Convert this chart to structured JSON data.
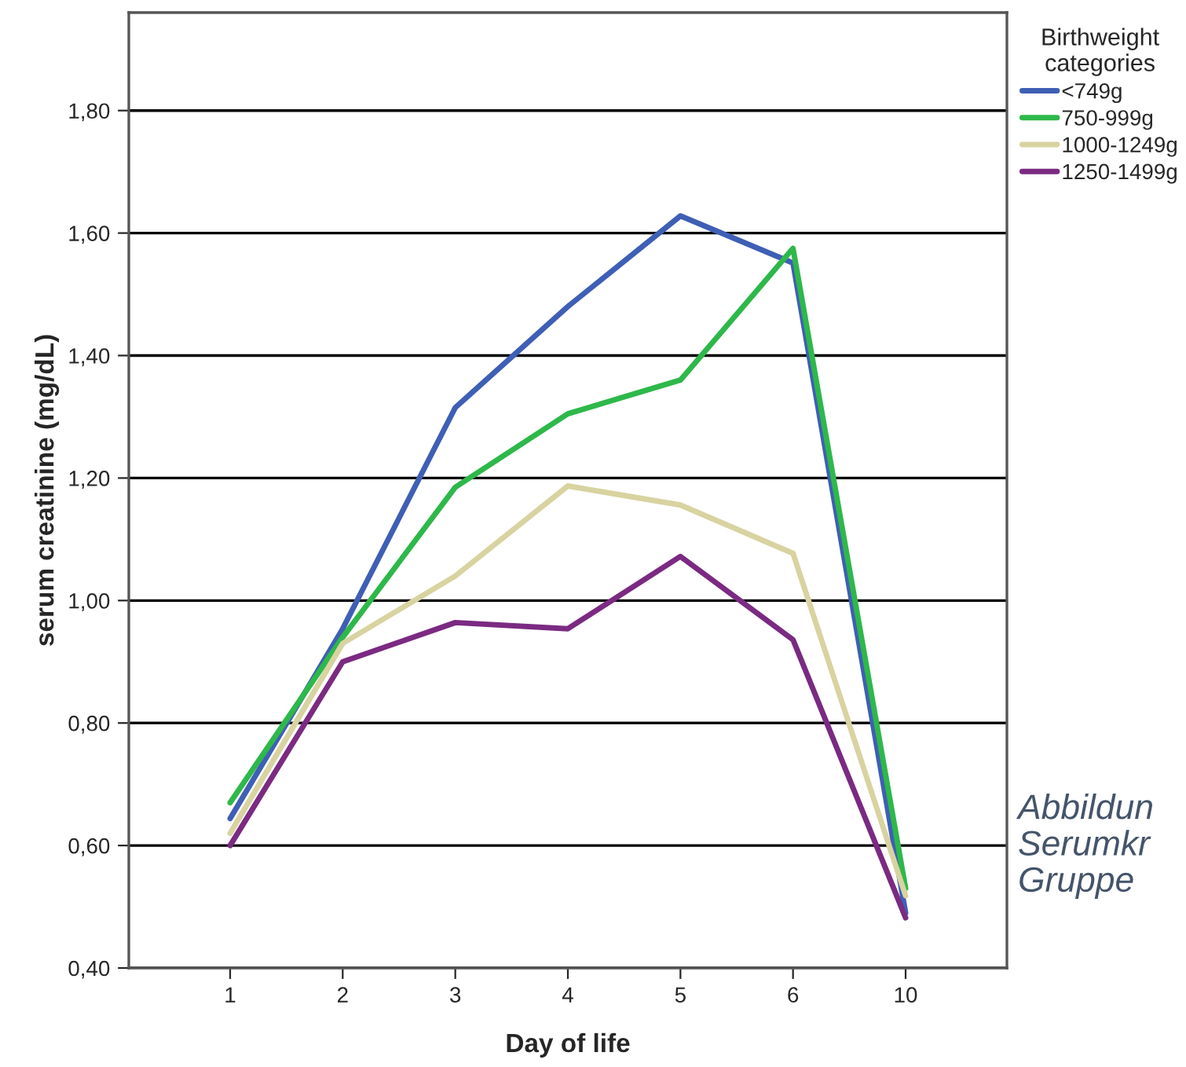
{
  "chart_data": {
    "type": "line",
    "xlabel": "Day of life",
    "ylabel": "serum creatinine (mg/dL)",
    "legend_title": "Birthweight\ncategories",
    "categories": [
      "1",
      "2",
      "3",
      "4",
      "5",
      "6",
      "10"
    ],
    "series": [
      {
        "name": "<749g",
        "color": "#3f5fb5",
        "values": [
          0.644,
          0.954,
          1.315,
          1.48,
          1.628,
          1.551,
          0.49
        ]
      },
      {
        "name": "750-999g",
        "color": "#2eb84a",
        "values": [
          0.67,
          0.94,
          1.185,
          1.305,
          1.36,
          1.575,
          0.53
        ]
      },
      {
        "name": "1000-1249g",
        "color": "#d8d3a0",
        "values": [
          0.62,
          0.93,
          1.04,
          1.187,
          1.156,
          1.077,
          0.518
        ]
      },
      {
        "name": "1250-1499g",
        "color": "#7b2a82",
        "values": [
          0.6,
          0.9,
          0.964,
          0.954,
          1.072,
          0.936,
          0.482
        ]
      }
    ],
    "ylim": [
      0.4,
      1.96
    ],
    "yticks": [
      {
        "value": 0.4,
        "label": "0,40"
      },
      {
        "value": 0.6,
        "label": "0,60"
      },
      {
        "value": 0.8,
        "label": "0,80"
      },
      {
        "value": 1.0,
        "label": "1,00"
      },
      {
        "value": 1.2,
        "label": "1,20"
      },
      {
        "value": 1.4,
        "label": "1,40"
      },
      {
        "value": 1.6,
        "label": "1,60"
      },
      {
        "value": 1.8,
        "label": "1,80"
      }
    ],
    "grid": "y",
    "legend": "top right",
    "marker": "none",
    "line_style": "solid",
    "annotations": [
      "Abbildun\nSerumkr\nGruppe"
    ]
  }
}
